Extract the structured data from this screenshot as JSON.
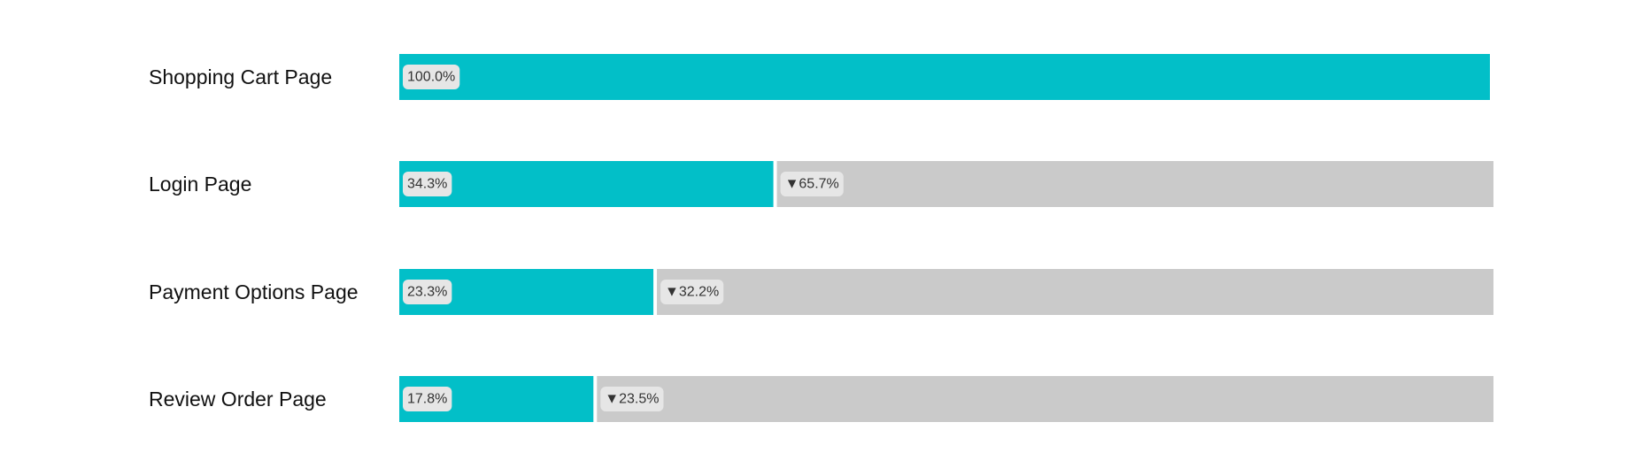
{
  "chart_data": {
    "type": "bar",
    "categories": [
      "Shopping Cart Page",
      "Login Page",
      "Payment Options Page",
      "Review Order Page"
    ],
    "values": [
      100.0,
      34.3,
      23.3,
      17.8
    ],
    "value_labels": [
      "100.0%",
      "34.3%",
      "23.3%",
      "17.8%"
    ],
    "dropoffs": [
      null,
      65.7,
      32.2,
      23.5
    ],
    "dropoff_labels": [
      "",
      "▼65.7%",
      "▼32.2%",
      "▼23.5%"
    ],
    "xlim": [
      0,
      100
    ],
    "grid": false,
    "legend": "none",
    "colors": {
      "bar": "#02bfc8",
      "remainder": "#cacaca",
      "label_pill": "#e6e6e6"
    }
  }
}
